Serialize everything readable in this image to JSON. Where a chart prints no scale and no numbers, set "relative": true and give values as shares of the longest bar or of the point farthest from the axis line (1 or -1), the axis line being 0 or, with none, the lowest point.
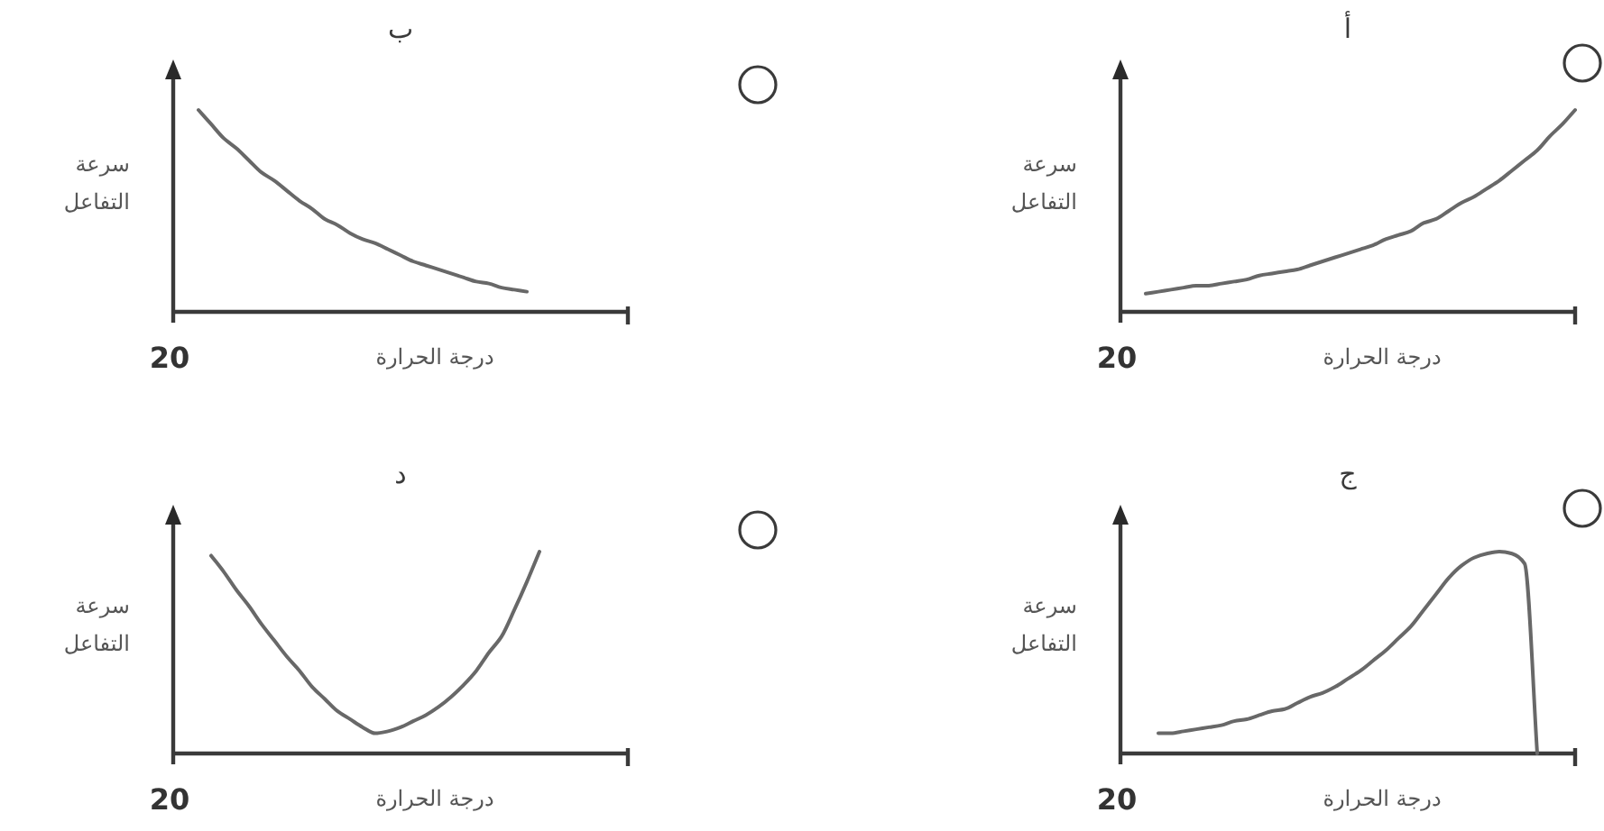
{
  "chart_data": [
    {
      "type": "line",
      "title": "أ",
      "xlabel": "درجة الحرارة",
      "ylabel": "سرعة\nالتفاعل",
      "annotations": [
        "20"
      ],
      "relative": true,
      "categories": [
        null,
        null,
        null,
        null,
        null,
        null,
        null,
        null,
        null,
        null,
        null,
        null,
        null,
        null,
        null,
        null,
        null,
        null,
        null,
        null,
        null,
        null,
        null,
        null,
        null,
        null,
        null,
        null,
        null,
        null,
        null,
        null,
        null,
        null,
        null,
        null,
        null
      ],
      "series": [
        {
          "color": "#686868",
          "values": [
            null,
            null,
            0.09,
            0.1,
            0.11,
            0.12,
            0.13,
            0.13,
            0.14,
            0.15,
            0.16,
            0.18,
            0.19,
            0.2,
            0.21,
            0.23,
            0.25,
            0.27,
            0.29,
            0.31,
            0.33,
            0.36,
            0.38,
            0.4,
            0.44,
            0.46,
            0.5,
            0.54,
            0.57,
            0.61,
            0.65,
            0.7,
            0.75,
            0.8,
            0.87,
            0.93,
            1
          ]
        }
      ]
    },
    {
      "type": "line",
      "title": "ب",
      "xlabel": "درجة الحرارة",
      "ylabel": "سرعة\nالتفاعل",
      "annotations": [
        "20"
      ],
      "relative": true,
      "categories": [
        null,
        null,
        null,
        null,
        null,
        null,
        null,
        null,
        null,
        null,
        null,
        null,
        null,
        null,
        null,
        null,
        null,
        null,
        null,
        null,
        null,
        null,
        null,
        null,
        null,
        null,
        null,
        null,
        null,
        null,
        null,
        null,
        null,
        null,
        null,
        null,
        null
      ],
      "series": [
        {
          "color": "#686868",
          "values": [
            null,
            null,
            1,
            0.93,
            0.86,
            0.81,
            0.75,
            0.69,
            0.65,
            0.6,
            0.55,
            0.51,
            0.46,
            0.43,
            0.39,
            0.36,
            0.34,
            0.31,
            0.28,
            0.25,
            0.23,
            0.21,
            0.19,
            0.17,
            0.15,
            0.14,
            0.12,
            0.11,
            0.1,
            null,
            null,
            null,
            null,
            null,
            null,
            null,
            null
          ]
        }
      ]
    },
    {
      "type": "line",
      "title": "ج",
      "xlabel": "درجة الحرارة",
      "ylabel": "سرعة\nالتفاعل",
      "annotations": [
        "20"
      ],
      "relative": true,
      "categories": [
        null,
        null,
        null,
        null,
        null,
        null,
        null,
        null,
        null,
        null,
        null,
        null,
        null,
        null,
        null,
        null,
        null,
        null,
        null,
        null,
        null,
        null,
        null,
        null,
        null,
        null,
        null,
        null,
        null,
        null,
        null,
        null,
        null,
        null,
        null,
        null,
        null
      ],
      "series": [
        {
          "color": "#686868",
          "values": [
            null,
            null,
            null,
            0.1,
            0.1,
            0.11,
            0.12,
            0.13,
            0.14,
            0.16,
            0.17,
            0.19,
            0.21,
            0.22,
            0.25,
            0.28,
            0.3,
            0.33,
            0.37,
            0.41,
            0.46,
            0.51,
            0.57,
            0.63,
            0.71,
            0.79,
            0.87,
            0.93,
            0.97,
            0.99,
            1,
            0.99,
            0.94,
            0,
            null,
            null,
            null
          ]
        }
      ]
    },
    {
      "type": "line",
      "title": "د",
      "xlabel": "درجة الحرارة",
      "ylabel": "سرعة\nالتفاعل",
      "annotations": [
        "20"
      ],
      "relative": true,
      "categories": [
        null,
        null,
        null,
        null,
        null,
        null,
        null,
        null,
        null,
        null,
        null,
        null,
        null,
        null,
        null,
        null,
        null,
        null,
        null,
        null,
        null,
        null,
        null,
        null,
        null,
        null,
        null,
        null,
        null,
        null,
        null,
        null,
        null,
        null,
        null,
        null,
        null
      ],
      "series": [
        {
          "color": "#686868",
          "values": [
            null,
            null,
            null,
            0.98,
            0.9,
            0.81,
            0.73,
            0.64,
            0.56,
            0.48,
            0.41,
            0.33,
            0.27,
            0.21,
            0.17,
            0.13,
            0.1,
            0.11,
            0.13,
            0.16,
            0.19,
            0.23,
            0.28,
            0.34,
            0.41,
            0.5,
            0.58,
            0.71,
            0.85,
            1,
            null,
            null,
            null,
            null,
            null,
            null,
            null
          ]
        }
      ]
    }
  ]
}
